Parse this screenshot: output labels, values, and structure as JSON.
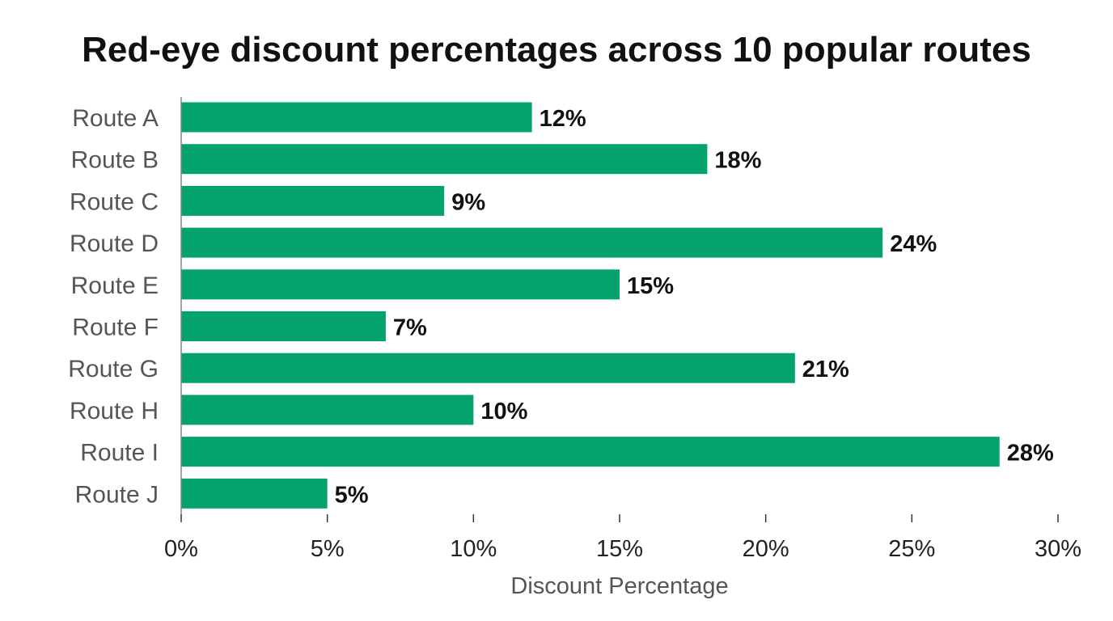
{
  "chart_data": {
    "type": "bar",
    "orientation": "horizontal",
    "title": "Red-eye discount percentages across 10 popular routes",
    "xlabel": "Discount Percentage",
    "ylabel": "",
    "categories": [
      "Route A",
      "Route B",
      "Route C",
      "Route D",
      "Route E",
      "Route F",
      "Route G",
      "Route H",
      "Route I",
      "Route J"
    ],
    "values": [
      12,
      18,
      9,
      24,
      15,
      7,
      21,
      10,
      28,
      5
    ],
    "value_labels": [
      "12%",
      "18%",
      "9%",
      "24%",
      "15%",
      "7%",
      "21%",
      "10%",
      "28%",
      "5%"
    ],
    "xlim": [
      0,
      30
    ],
    "ticks": [
      0,
      5,
      10,
      15,
      20,
      25,
      30
    ],
    "tick_labels": [
      "0%",
      "5%",
      "10%",
      "15%",
      "20%",
      "25%",
      "30%"
    ],
    "grid": false,
    "legend": "none",
    "bar_color": "#03a26f"
  }
}
